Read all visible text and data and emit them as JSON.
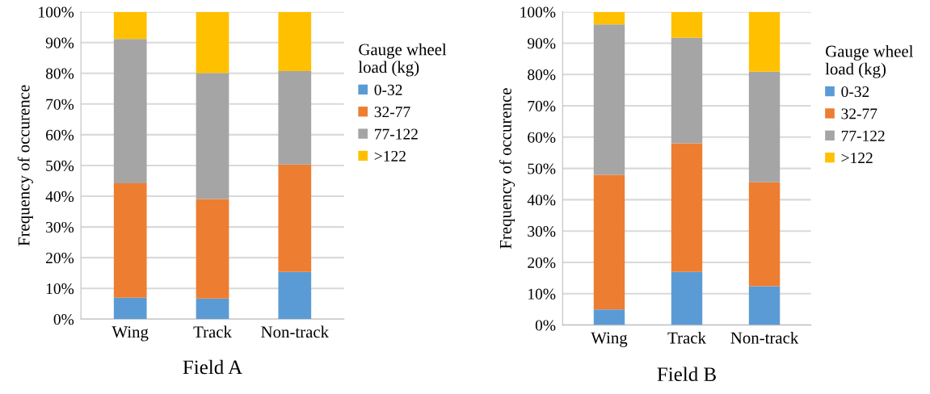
{
  "chart_data": [
    {
      "type": "bar",
      "stacked": true,
      "title": "Field A",
      "ylabel": "Frequency of occurence",
      "legend_title": "Gauge wheel\nload (kg)",
      "legend": "right",
      "grid": "y",
      "categories": [
        "Wing",
        "Track",
        "Non-track"
      ],
      "ylim": [
        0,
        100
      ],
      "yticks": [
        {
          "value": 0,
          "label": "0%"
        },
        {
          "value": 10,
          "label": "10%"
        },
        {
          "value": 20,
          "label": "20%"
        },
        {
          "value": 30,
          "label": "30%"
        },
        {
          "value": 40,
          "label": "40%"
        },
        {
          "value": 50,
          "label": "50%"
        },
        {
          "value": 60,
          "label": "60%"
        },
        {
          "value": 70,
          "label": "70%"
        },
        {
          "value": 80,
          "label": "80%"
        },
        {
          "value": 90,
          "label": "90%"
        },
        {
          "value": 100,
          "label": "100%"
        }
      ],
      "series": [
        {
          "name": "0-32",
          "color": "#5b9bd5",
          "values": [
            7.0,
            6.7,
            15.4
          ]
        },
        {
          "name": "32-77",
          "color": "#ed7d31",
          "values": [
            37.2,
            32.4,
            34.9
          ]
        },
        {
          "name": "77-122",
          "color": "#a5a5a5",
          "values": [
            47.0,
            41.0,
            30.4
          ]
        },
        {
          "name": ">122",
          "color": "#ffc000",
          "values": [
            8.8,
            19.9,
            19.3
          ]
        }
      ]
    },
    {
      "type": "bar",
      "stacked": true,
      "title": "Field B",
      "ylabel": "Frequency of occurence",
      "legend_title": "Gauge wheel\nload (kg)",
      "legend": "right",
      "grid": "y",
      "categories": [
        "Wing",
        "Track",
        "Non-track"
      ],
      "ylim": [
        0,
        100
      ],
      "yticks": [
        {
          "value": 0,
          "label": "0%"
        },
        {
          "value": 10,
          "label": "10%"
        },
        {
          "value": 20,
          "label": "20%"
        },
        {
          "value": 30,
          "label": "30%"
        },
        {
          "value": 40,
          "label": "40%"
        },
        {
          "value": 50,
          "label": "50%"
        },
        {
          "value": 60,
          "label": "60%"
        },
        {
          "value": 70,
          "label": "70%"
        },
        {
          "value": 80,
          "label": "80%"
        },
        {
          "value": 90,
          "label": "90%"
        },
        {
          "value": 100,
          "label": "100%"
        }
      ],
      "series": [
        {
          "name": "0-32",
          "color": "#5b9bd5",
          "values": [
            5.0,
            17.0,
            12.4
          ]
        },
        {
          "name": "32-77",
          "color": "#ed7d31",
          "values": [
            43.0,
            41.0,
            33.2
          ]
        },
        {
          "name": "77-122",
          "color": "#a5a5a5",
          "values": [
            48.0,
            33.7,
            35.3
          ]
        },
        {
          "name": ">122",
          "color": "#ffc000",
          "values": [
            4.0,
            8.3,
            19.1
          ]
        }
      ]
    }
  ]
}
